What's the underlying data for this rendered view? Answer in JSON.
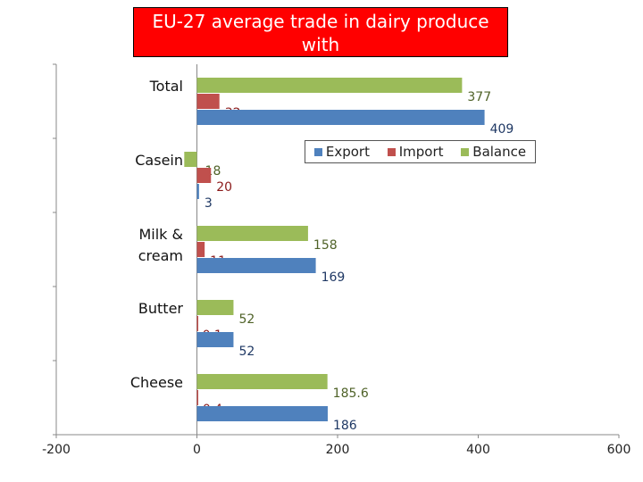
{
  "title_lines": [
    "EU-27 average trade in dairy produce",
    "with"
  ],
  "chart_data": {
    "type": "bar",
    "orientation": "horizontal",
    "title": "EU-27 average trade in dairy produce with",
    "categories": [
      "Total",
      "Casein",
      "Milk & cream",
      "Butter",
      "Cheese"
    ],
    "category_lines": [
      [
        "Total"
      ],
      [
        "Casein"
      ],
      [
        "Milk &",
        "cream"
      ],
      [
        "Butter"
      ],
      [
        "Cheese"
      ]
    ],
    "series": [
      {
        "name": "Export",
        "color": "#4f81bd",
        "label_color": "#1f3864",
        "values": [
          409,
          3,
          169,
          52,
          186
        ],
        "labels": [
          "409",
          "3",
          "169",
          "52",
          "186"
        ]
      },
      {
        "name": "Import",
        "color": "#c0504d",
        "label_color": "#8b1a1a",
        "values": [
          32,
          20,
          11,
          0.1,
          0.4
        ],
        "labels": [
          "32",
          "20",
          "11",
          "0.1",
          "0.4"
        ]
      },
      {
        "name": "Balance",
        "color": "#9bbb59",
        "label_color": "#4f6228",
        "values": [
          377,
          -18,
          158,
          52,
          185.6
        ],
        "labels": [
          "377",
          "-18",
          "158",
          "52",
          "185.6"
        ]
      }
    ],
    "xlim": [
      -200,
      600
    ],
    "xticks": [
      -200,
      0,
      200,
      400,
      600
    ],
    "legend_position": "top-right",
    "grid": false
  }
}
